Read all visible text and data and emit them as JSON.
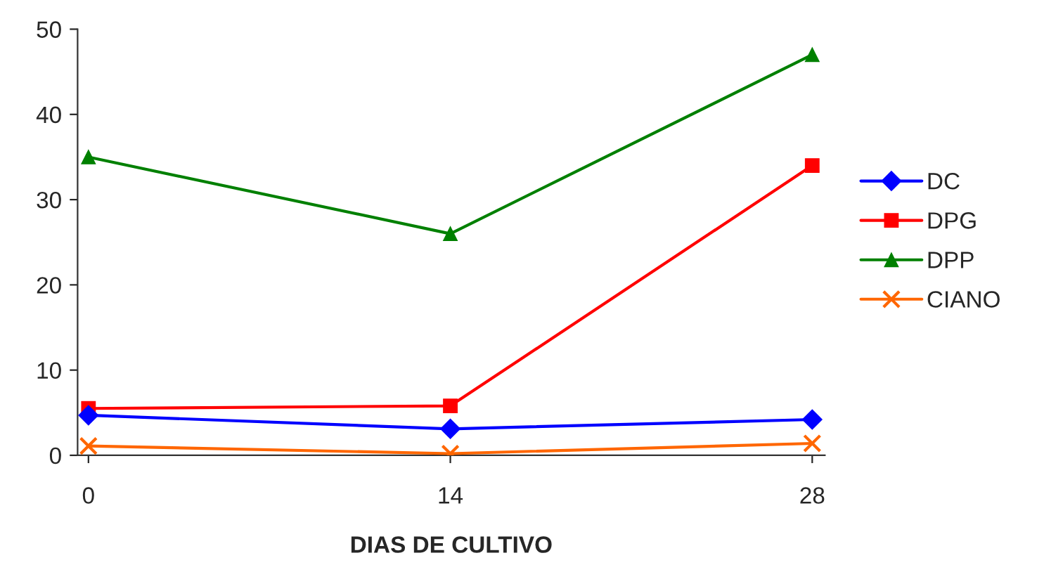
{
  "chart_data": {
    "type": "line",
    "xlabel": "DIAS DE CULTIVO",
    "categories": [
      "0",
      "14",
      "28"
    ],
    "series": [
      {
        "name": "DC",
        "color": "#0000ff",
        "marker": "diamond",
        "values": [
          4.7,
          3.1,
          4.2
        ]
      },
      {
        "name": "DPG",
        "color": "#ff0000",
        "marker": "square",
        "values": [
          5.5,
          5.8,
          34.0
        ]
      },
      {
        "name": "DPP",
        "color": "#008000",
        "marker": "triangle",
        "values": [
          35.0,
          26.0,
          47.0
        ]
      },
      {
        "name": "CIANO",
        "color": "#ff6600",
        "marker": "cross",
        "values": [
          1.1,
          0.2,
          1.4
        ]
      }
    ],
    "ylim": [
      0,
      50
    ],
    "yticks": [
      0,
      10,
      20,
      30,
      40,
      50
    ],
    "grid": false,
    "legend": "right"
  }
}
